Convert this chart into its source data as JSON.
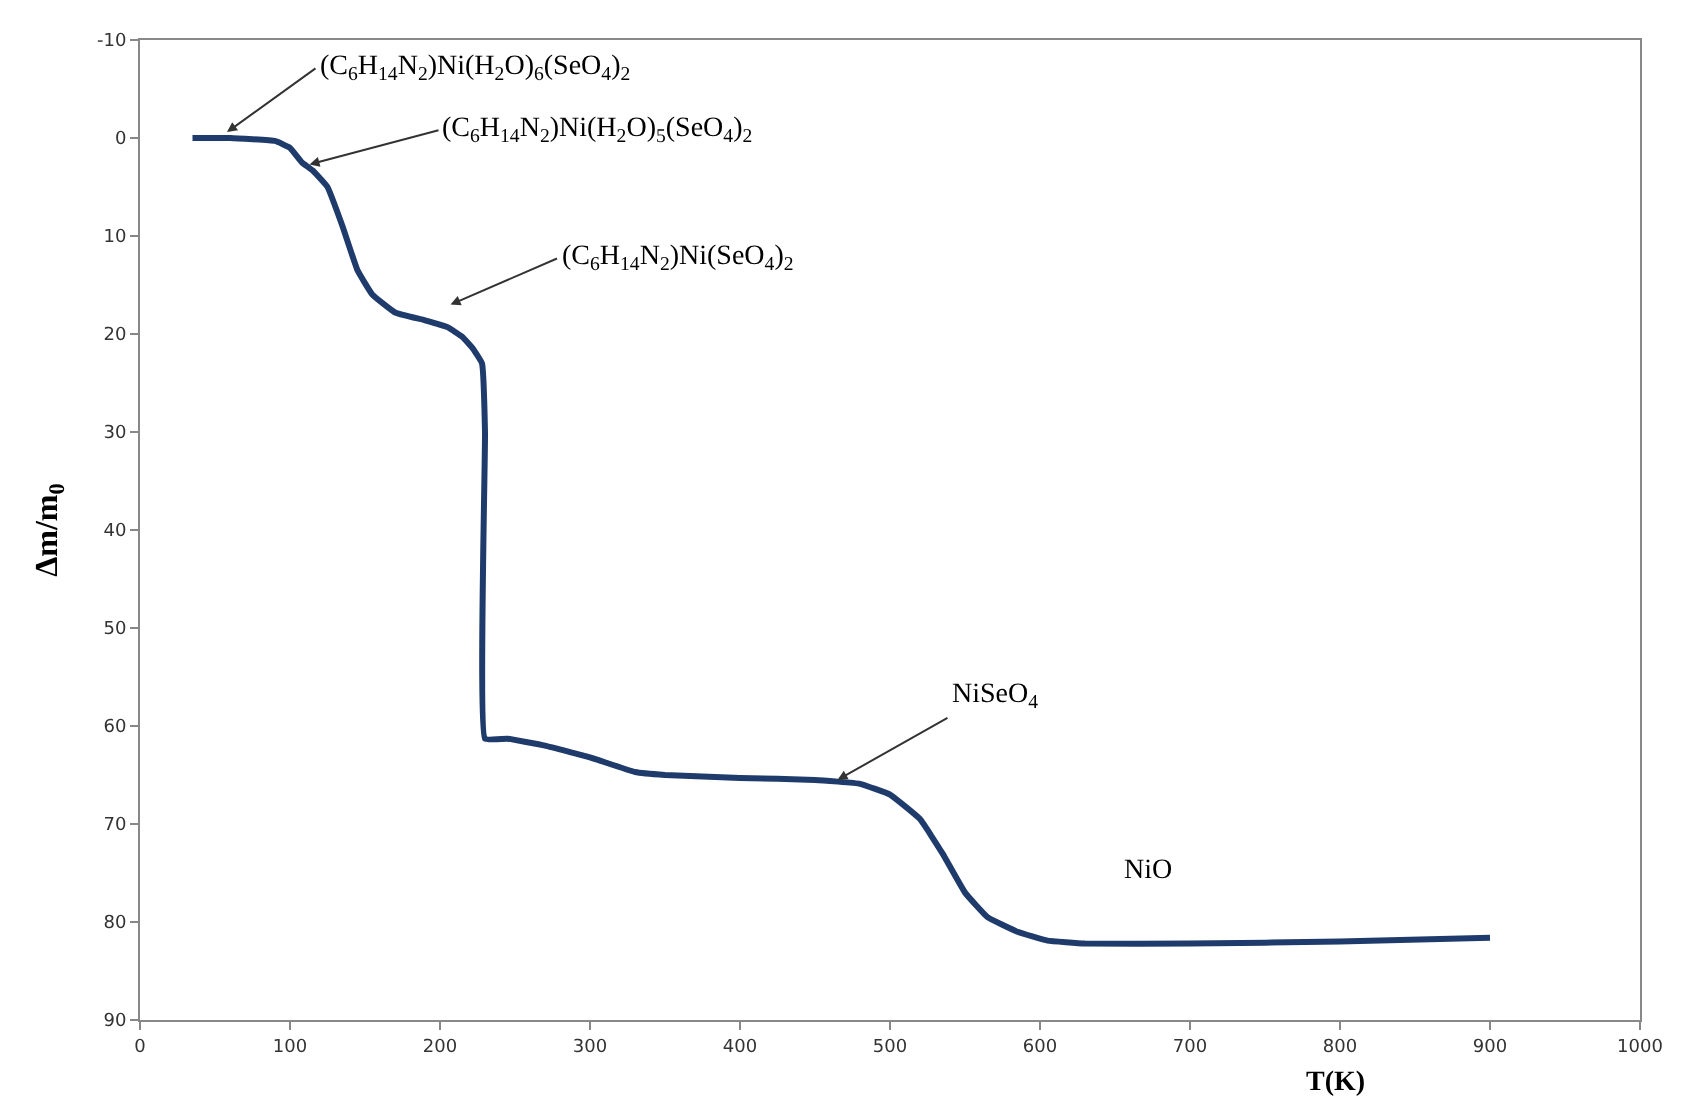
{
  "chart_data": {
    "type": "line",
    "xlabel": "T(K)",
    "ylabel": "Δm/m$_{0}$",
    "x": [
      35,
      60,
      90,
      100,
      108,
      115,
      125,
      135,
      145,
      155,
      170,
      190,
      205,
      215,
      222,
      228,
      230,
      230,
      245,
      270,
      300,
      330,
      350,
      400,
      450,
      480,
      500,
      520,
      535,
      550,
      565,
      585,
      605,
      630,
      700,
      800,
      900
    ],
    "series": [
      {
        "color": "#1f3b6b",
        "values": [
          0,
          0,
          0.3,
          1,
          2.5,
          3.3,
          5,
          9,
          13.5,
          16,
          17.8,
          18.6,
          19.3,
          20.3,
          21.5,
          23,
          30,
          61.3,
          61.3,
          62,
          63.2,
          64.7,
          65,
          65.3,
          65.5,
          65.9,
          67,
          69.5,
          73,
          77,
          79.5,
          81,
          81.9,
          82.2,
          82.2,
          82,
          81.6
        ]
      }
    ],
    "xlim": [
      0,
      1000
    ],
    "xticks": [
      0,
      100,
      200,
      300,
      400,
      500,
      600,
      700,
      800,
      900,
      1000
    ],
    "ylim": [
      90,
      -10
    ],
    "yticks": [
      -10,
      0,
      10,
      20,
      30,
      40,
      50,
      60,
      70,
      80,
      90
    ],
    "legend": false,
    "marker": "none",
    "line_style": "solid",
    "annotations": [
      "(C$_{6}$H$_{14}$N$_{2}$)Ni(H$_{2}$O)$_{6}$(SeO$_{4}$)$_{2}$",
      "(C$_{6}$H$_{14}$N$_{2}$)Ni(H$_{2}$O)$_{5}$(SeO$_{4}$)$_{2}$",
      "(C$_{6}$H$_{14}$N$_{2}$)Ni(SeO$_{4}$)$_{2}$",
      {
        "text": "NiSeO$_{4}$",
        "x": 465,
        "y": 65.5
      },
      "NiO"
    ]
  }
}
